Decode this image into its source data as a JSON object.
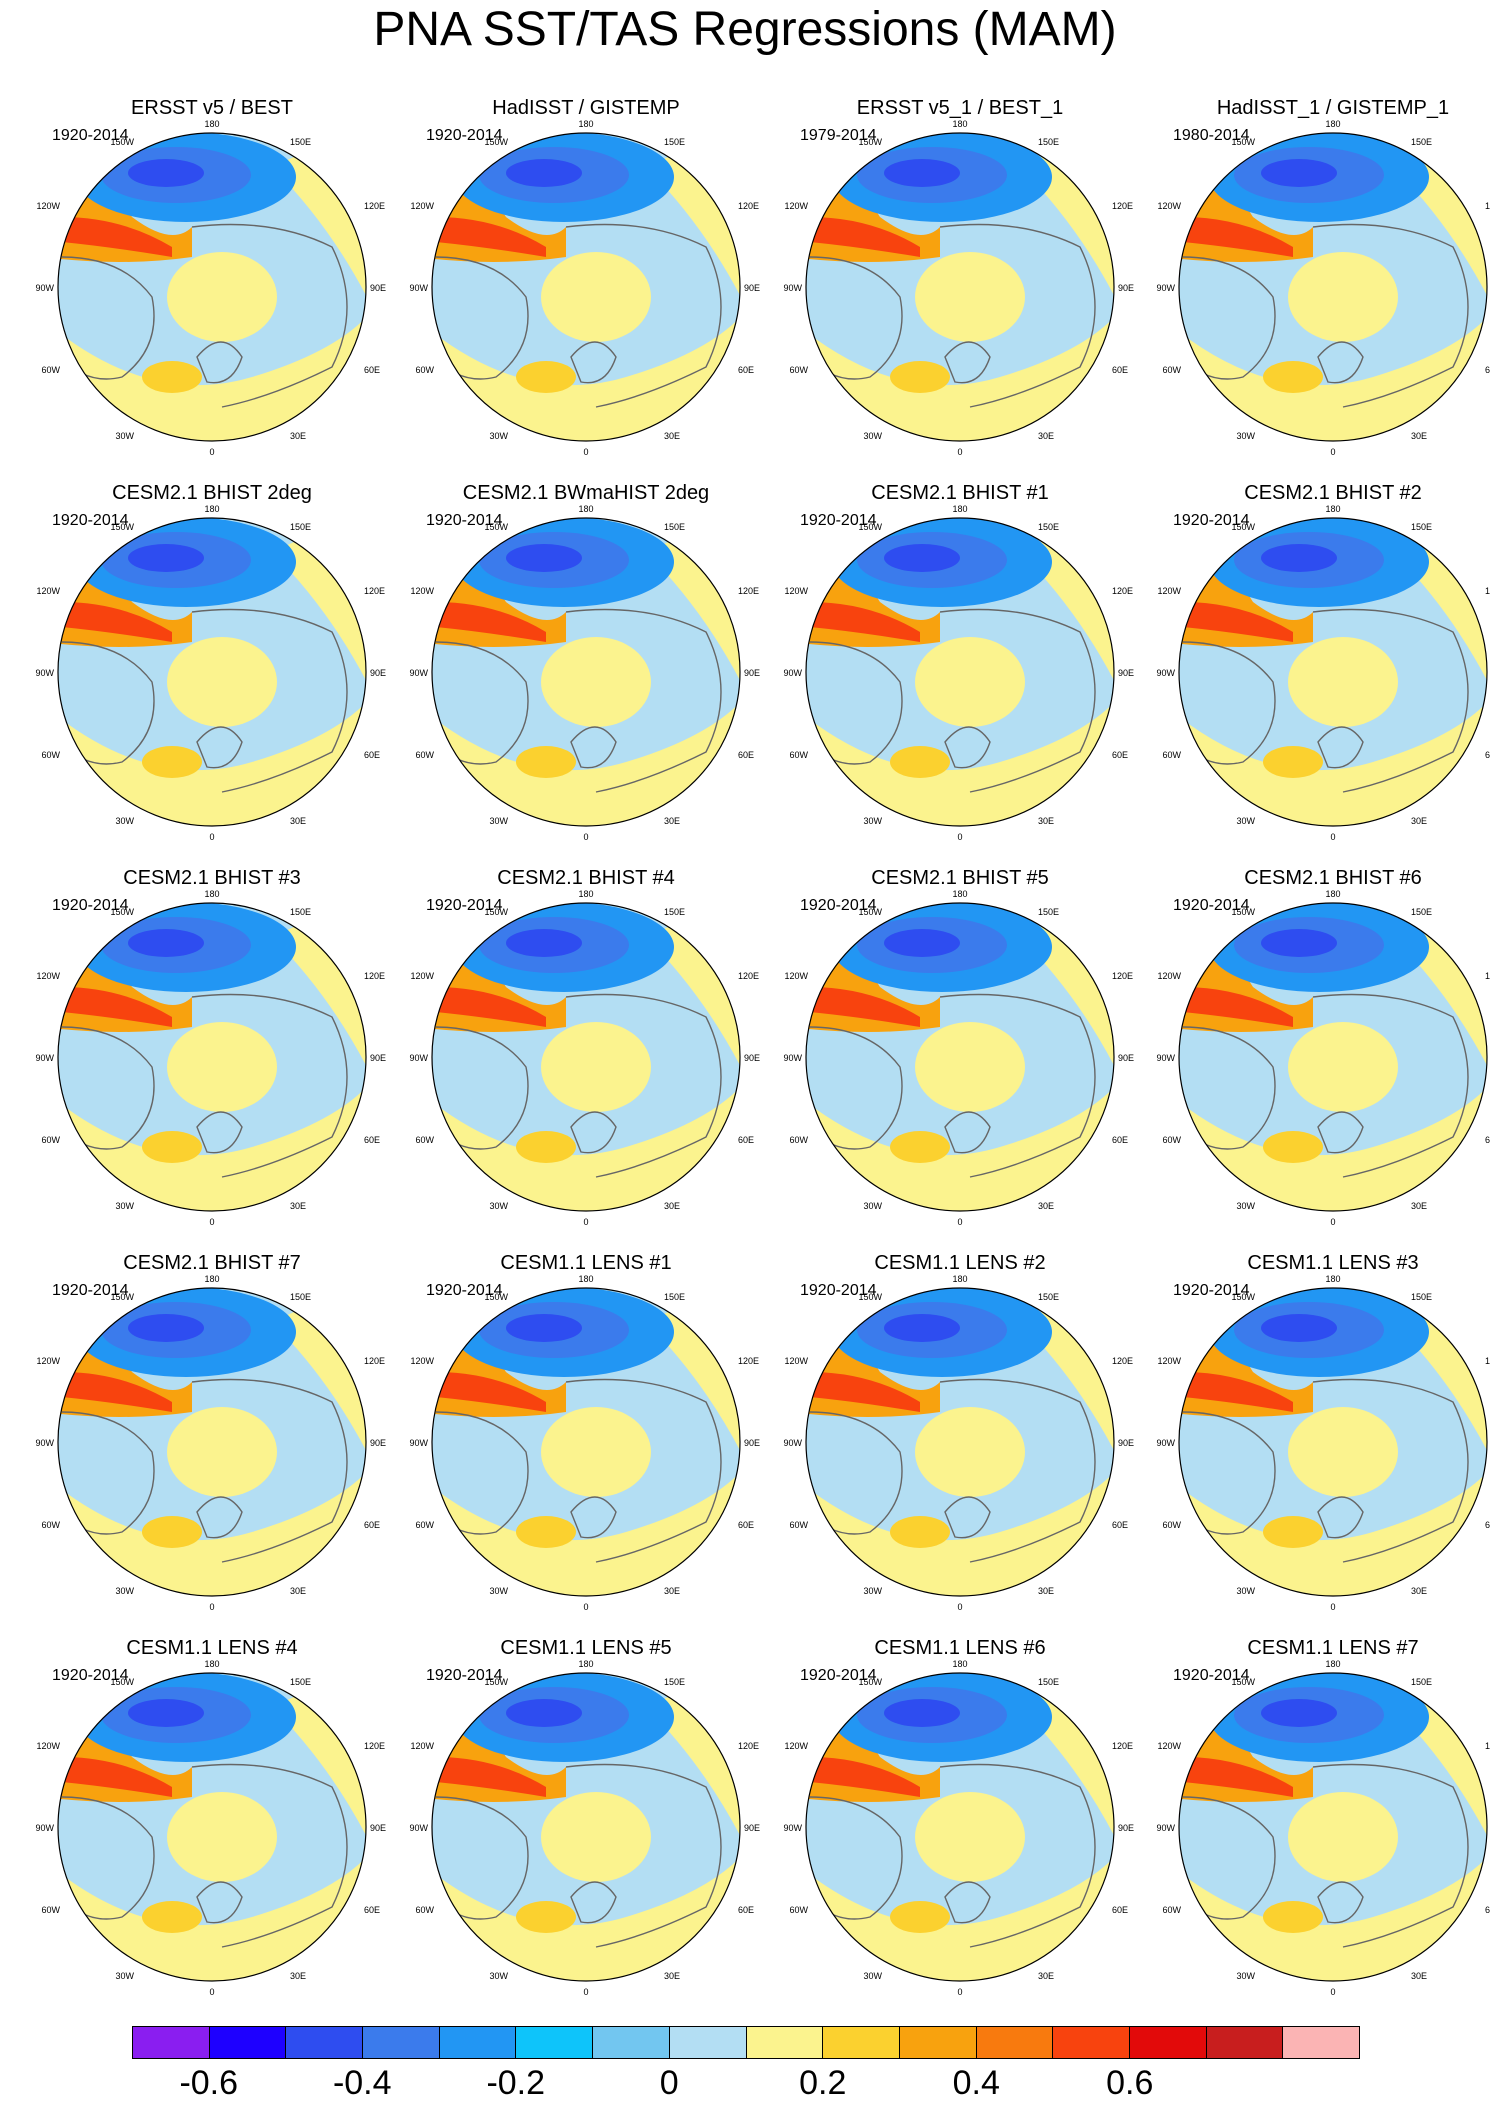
{
  "title": "PNA SST/TAS Regressions (MAM)",
  "panels": [
    {
      "name": "ERSST v5 / BEST",
      "years": "1920-2014"
    },
    {
      "name": "HadISST / GISTEMP",
      "years": "1920-2014"
    },
    {
      "name": "ERSST v5_1 / BEST_1",
      "years": "1979-2014"
    },
    {
      "name": "HadISST_1 / GISTEMP_1",
      "years": "1980-2014"
    },
    {
      "name": "CESM2.1 BHIST 2deg",
      "years": "1920-2014"
    },
    {
      "name": "CESM2.1 BWmaHIST 2deg",
      "years": "1920-2014"
    },
    {
      "name": "CESM2.1 BHIST #1",
      "years": "1920-2014"
    },
    {
      "name": "CESM2.1 BHIST #2",
      "years": "1920-2014"
    },
    {
      "name": "CESM2.1 BHIST #3",
      "years": "1920-2014"
    },
    {
      "name": "CESM2.1 BHIST #4",
      "years": "1920-2014"
    },
    {
      "name": "CESM2.1 BHIST #5",
      "years": "1920-2014"
    },
    {
      "name": "CESM2.1 BHIST #6",
      "years": "1920-2014"
    },
    {
      "name": "CESM2.1 BHIST #7",
      "years": "1920-2014"
    },
    {
      "name": "CESM1.1 LENS #1",
      "years": "1920-2014"
    },
    {
      "name": "CESM1.1 LENS #2",
      "years": "1920-2014"
    },
    {
      "name": "CESM1.1 LENS #3",
      "years": "1920-2014"
    },
    {
      "name": "CESM1.1 LENS #4",
      "years": "1920-2014"
    },
    {
      "name": "CESM1.1 LENS #5",
      "years": "1920-2014"
    },
    {
      "name": "CESM1.1 LENS #6",
      "years": "1920-2014"
    },
    {
      "name": "CESM1.1 LENS #7",
      "years": "1920-2014"
    }
  ],
  "lon_labels": {
    "top": "180",
    "bottom": "0",
    "upper_left": "150W",
    "upper_right": "150E",
    "mid_upper_left": "120W",
    "mid_upper_right": "120E",
    "left": "90W",
    "right": "90E",
    "mid_lower_left": "60W",
    "mid_lower_right": "60E",
    "lower_left": "30W",
    "lower_right": "30E"
  },
  "colorbar": {
    "colors": [
      "#8a1ef0",
      "#1e00ff",
      "#2e4df0",
      "#3b7bec",
      "#2296f3",
      "#0ec4fa",
      "#72c6f0",
      "#b3def3",
      "#fbf38e",
      "#fbd12f",
      "#f8a20e",
      "#f87a0e",
      "#f8430e",
      "#e20a0a",
      "#c81e1e",
      "#fbb4b4"
    ],
    "tick_labels": [
      "-0.6",
      "-0.4",
      "-0.2",
      "0",
      "0.2",
      "0.4",
      "0.6"
    ]
  },
  "field_colors": {
    "strong_neg": "#2e4df0",
    "neg": "#3b7bec",
    "mod_neg": "#2296f3",
    "weak_neg": "#b3def3",
    "weak_pos": "#fbf38e",
    "pos": "#fbd12f",
    "mod_pos": "#f8a20e",
    "strong_pos": "#f8430e",
    "land_outline": "#666666"
  }
}
